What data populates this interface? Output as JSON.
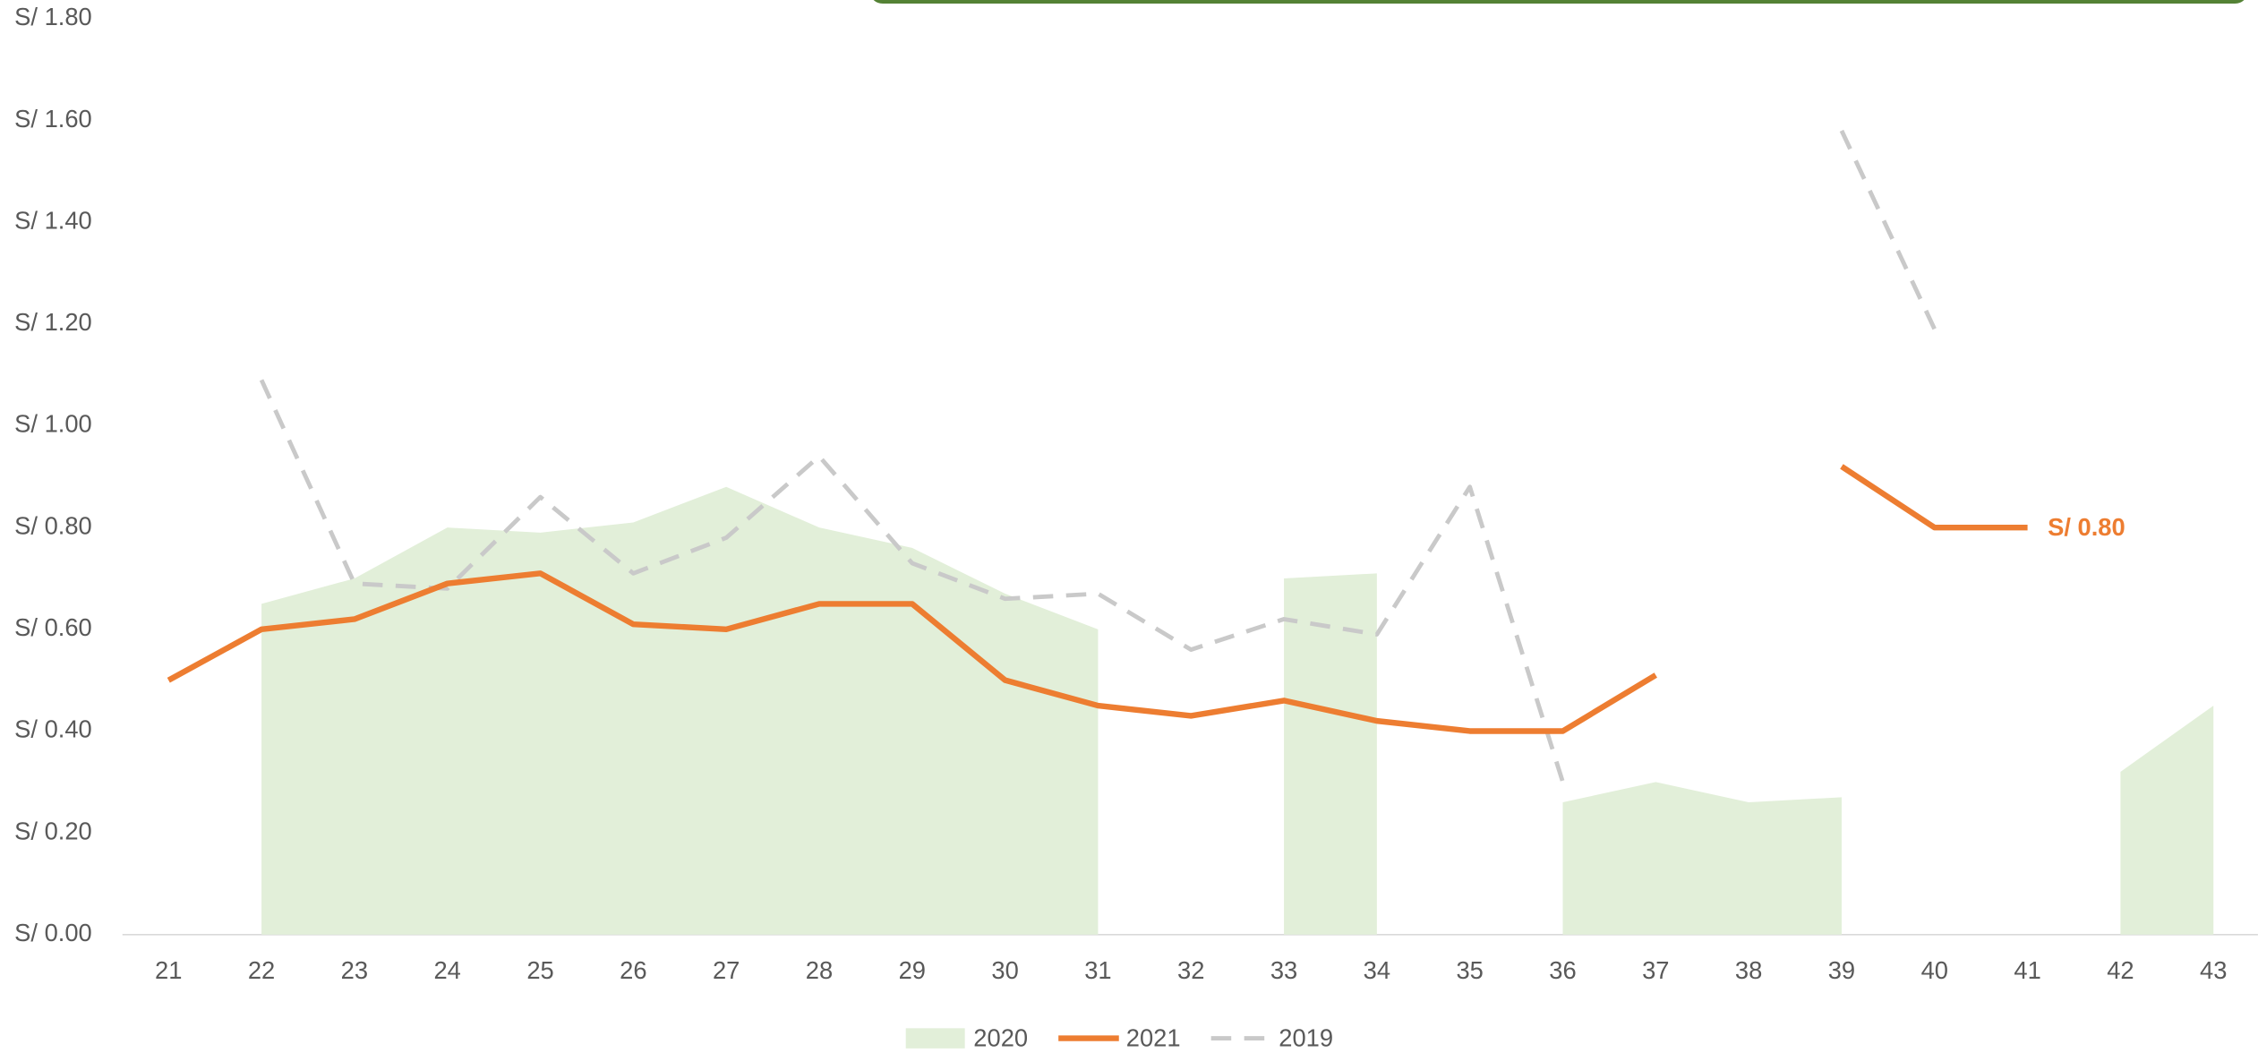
{
  "chart_data": {
    "type": "line",
    "categories": [
      "21",
      "22",
      "23",
      "24",
      "25",
      "26",
      "27",
      "28",
      "29",
      "30",
      "31",
      "32",
      "33",
      "34",
      "35",
      "36",
      "37",
      "38",
      "39",
      "40",
      "41",
      "42",
      "43"
    ],
    "series": [
      {
        "name": "2020",
        "kind": "area",
        "color": "#e2efd9",
        "values": [
          null,
          0.65,
          0.7,
          0.8,
          0.79,
          0.81,
          0.88,
          0.8,
          0.76,
          0.67,
          0.6,
          null,
          0.7,
          0.71,
          null,
          0.26,
          0.3,
          0.26,
          0.27,
          null,
          null,
          0.32,
          0.45
        ]
      },
      {
        "name": "2021",
        "kind": "line",
        "color": "#ed7d31",
        "values": [
          0.5,
          0.6,
          0.62,
          0.69,
          0.71,
          0.61,
          0.6,
          0.65,
          0.65,
          0.5,
          0.45,
          0.43,
          0.46,
          0.42,
          0.4,
          0.4,
          0.51,
          null,
          0.92,
          0.8,
          0.8,
          null,
          null
        ],
        "value_labels": [
          null,
          null,
          null,
          null,
          null,
          null,
          null,
          null,
          null,
          null,
          null,
          null,
          null,
          null,
          null,
          null,
          null,
          null,
          null,
          null,
          "S/ 0.80",
          null,
          null
        ]
      },
      {
        "name": "2019",
        "kind": "dashed",
        "color": "#c9c9c9",
        "values": [
          null,
          1.09,
          0.69,
          0.68,
          0.86,
          0.71,
          0.78,
          0.94,
          0.73,
          0.66,
          0.67,
          0.56,
          0.62,
          0.59,
          0.88,
          0.3,
          null,
          null,
          1.58,
          1.19,
          null,
          null,
          null
        ]
      }
    ],
    "ylim": [
      0,
      1.8
    ],
    "yticks": [
      {
        "value": 0,
        "label": "S/ 0.00"
      },
      {
        "value": 0.2,
        "label": "S/ 0.20"
      },
      {
        "value": 0.4,
        "label": "S/ 0.40"
      },
      {
        "value": 0.6,
        "label": "S/ 0.60"
      },
      {
        "value": 0.8,
        "label": "S/ 0.80"
      },
      {
        "value": 1.0,
        "label": "S/ 1.00"
      },
      {
        "value": 1.2,
        "label": "S/ 1.20"
      },
      {
        "value": 1.4,
        "label": "S/ 1.40"
      },
      {
        "value": 1.6,
        "label": "S/ 1.60"
      },
      {
        "value": 1.8,
        "label": "S/ 1.80"
      }
    ]
  }
}
